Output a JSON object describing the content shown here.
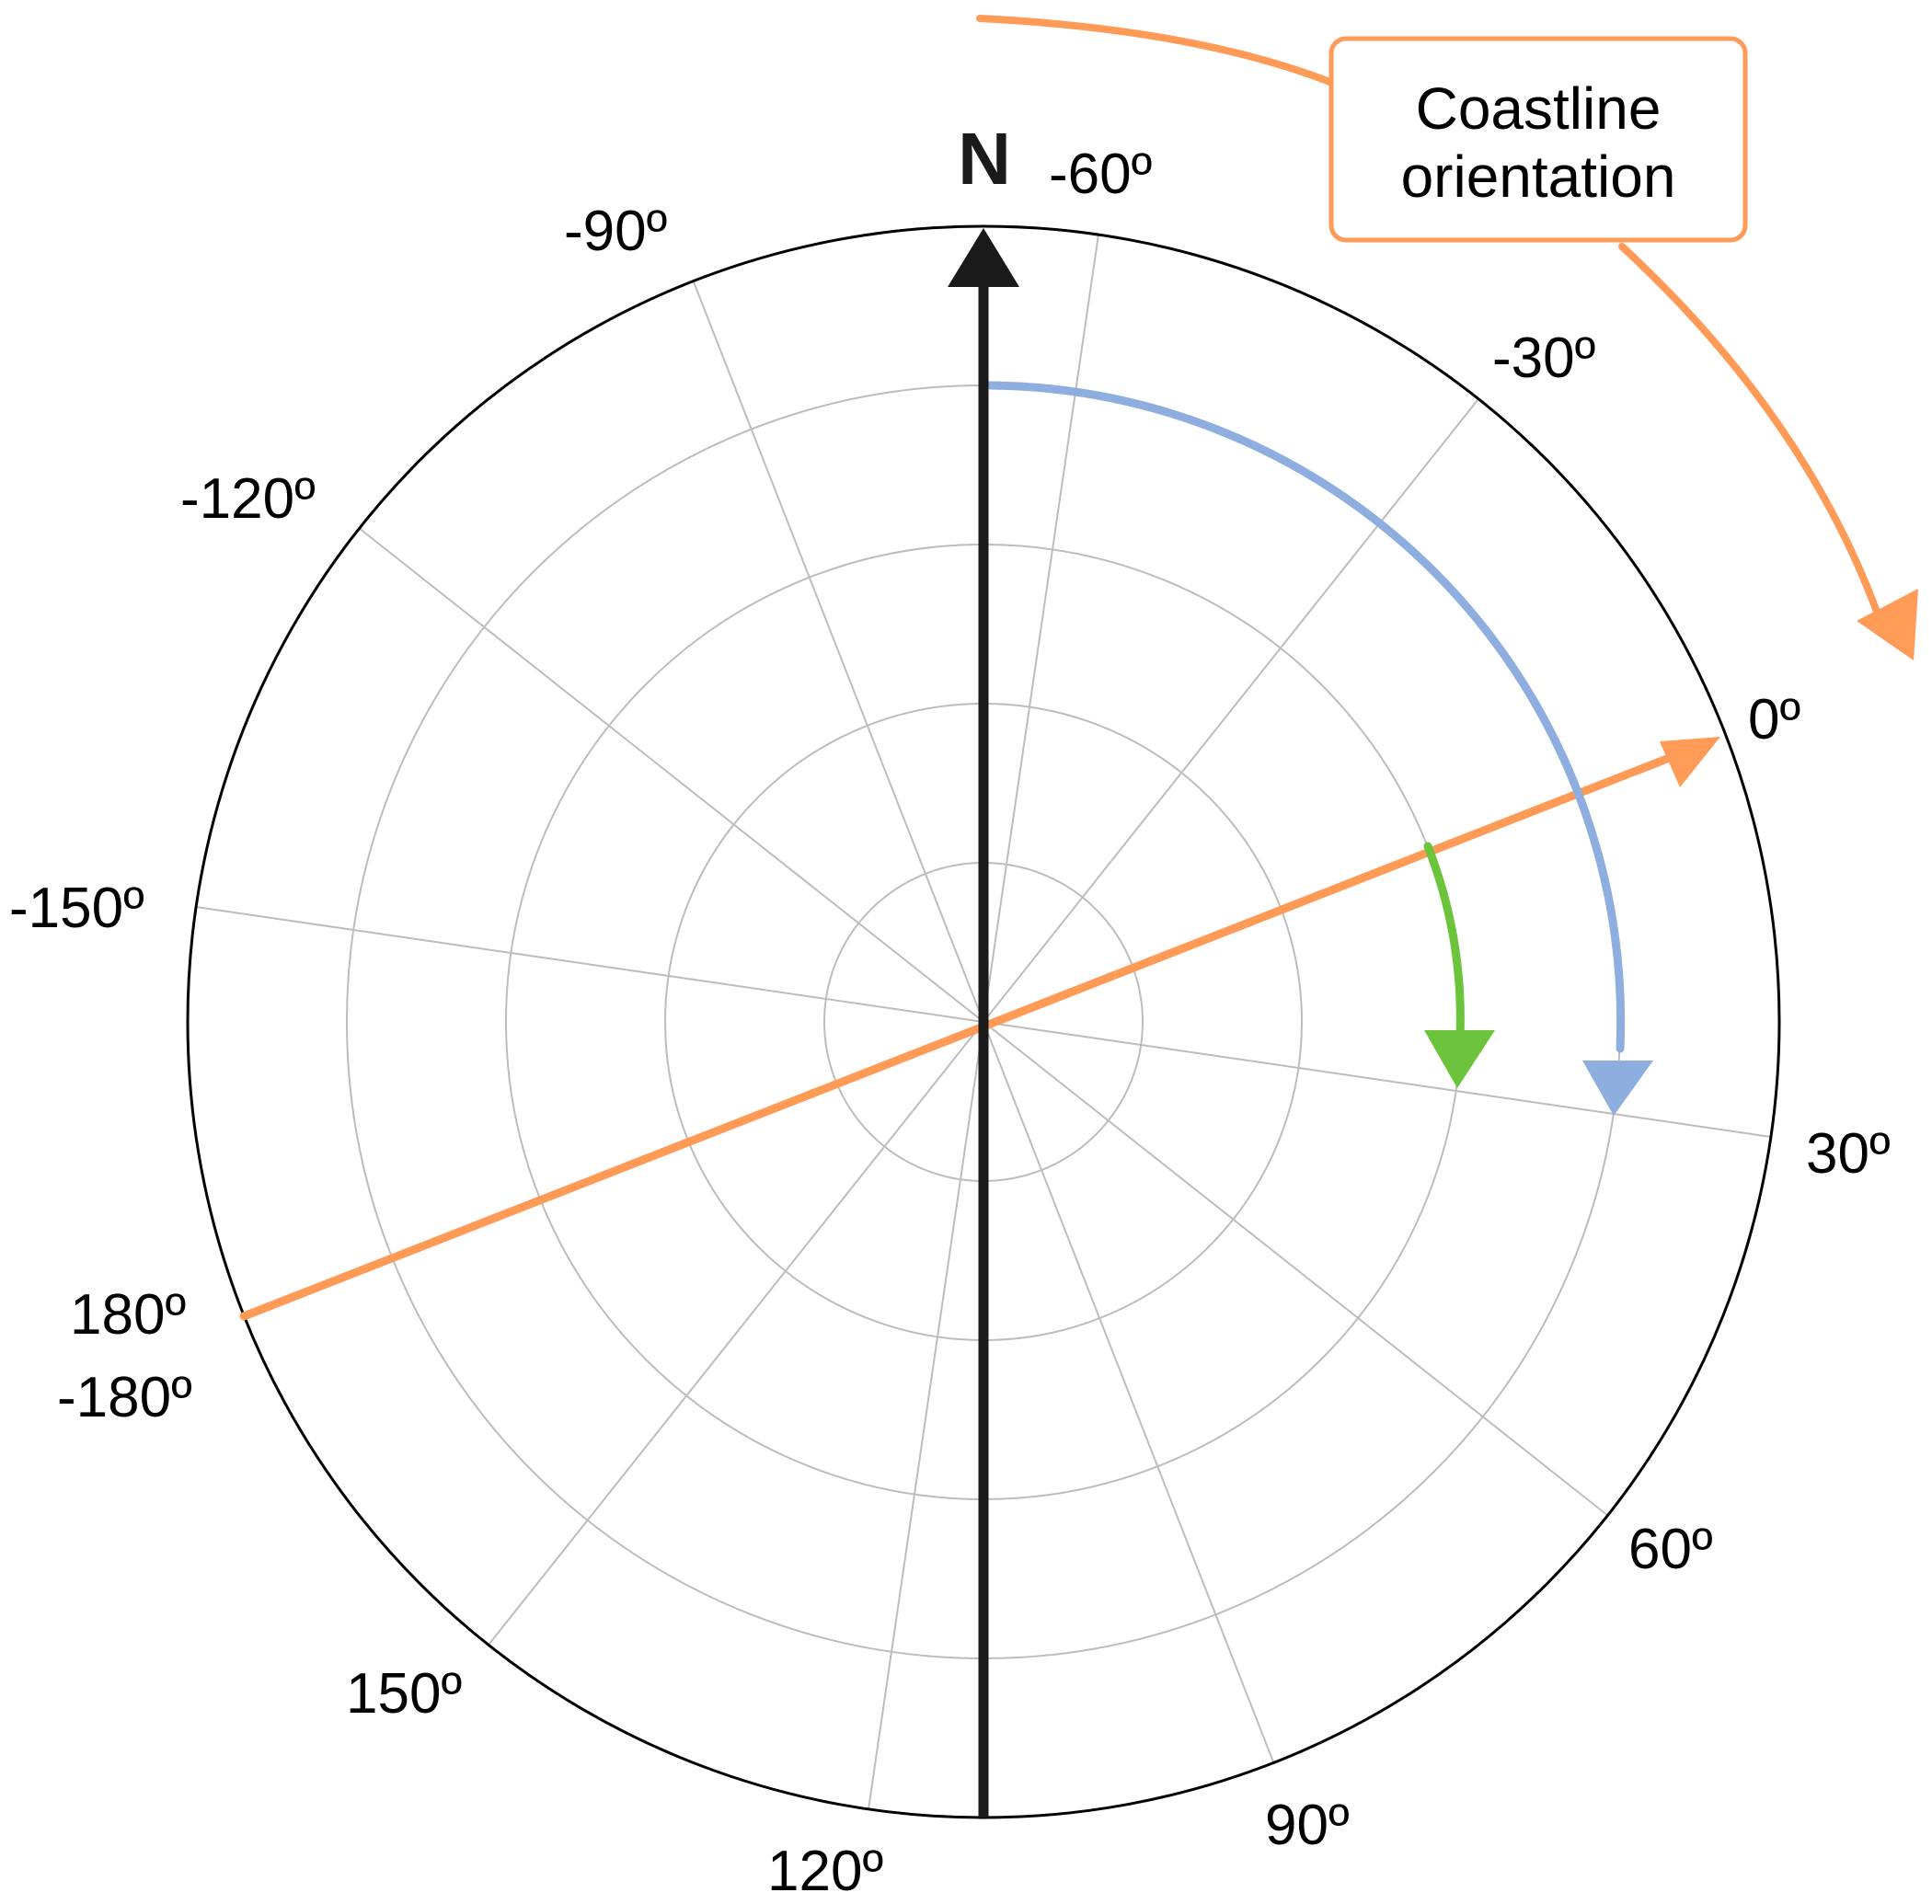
{
  "north_label": "N",
  "callout": {
    "line1": "Coastline",
    "line2": "orientation"
  },
  "angle_labels": [
    {
      "id": "m60",
      "text": "-60º"
    },
    {
      "id": "m90",
      "text": "-90º"
    },
    {
      "id": "m30",
      "text": "-30º"
    },
    {
      "id": "m120",
      "text": "-120º"
    },
    {
      "id": "zero",
      "text": "0º"
    },
    {
      "id": "m150",
      "text": "-150º"
    },
    {
      "id": "p30",
      "text": "30º"
    },
    {
      "id": "p180",
      "text": "180º"
    },
    {
      "id": "m180",
      "text": "-180º"
    },
    {
      "id": "p60",
      "text": "60º"
    },
    {
      "id": "p150",
      "text": "150º"
    },
    {
      "id": "p90",
      "text": "90º"
    },
    {
      "id": "p120",
      "text": "120º"
    }
  ],
  "colors": {
    "north_arrow": "#1a1a1a",
    "coastline": "#ff9a57",
    "blue_arc": "#8eaee0",
    "green_arc": "#6cc33c",
    "grid": "#bdbdbd",
    "ring": "#000000"
  }
}
